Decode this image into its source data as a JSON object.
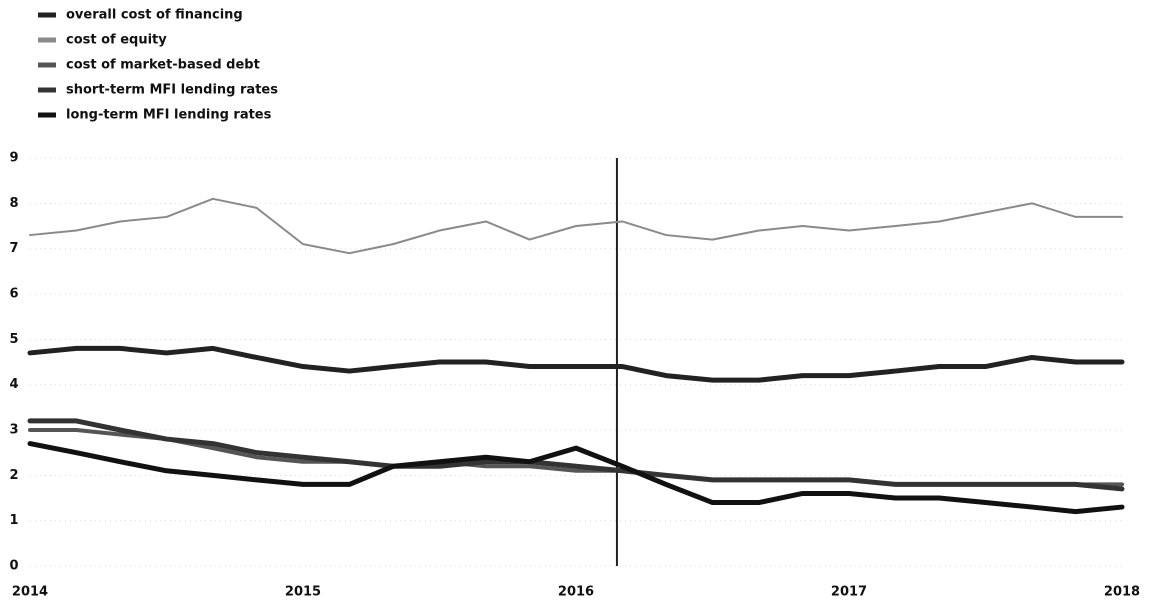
{
  "chart_data": {
    "type": "line",
    "x": [
      2014,
      2014.17,
      2014.33,
      2014.5,
      2014.67,
      2014.83,
      2015,
      2015.17,
      2015.33,
      2015.5,
      2015.67,
      2015.83,
      2016,
      2016.17,
      2016.33,
      2016.5,
      2016.67,
      2016.83,
      2017,
      2017.17,
      2017.33,
      2017.5,
      2017.67,
      2017.83,
      2018
    ],
    "series": [
      {
        "name": "overall cost of financing",
        "color": "#222222",
        "values": [
          4.7,
          4.8,
          4.8,
          4.7,
          4.8,
          4.6,
          4.4,
          4.3,
          4.4,
          4.5,
          4.5,
          4.4,
          4.4,
          4.4,
          4.2,
          4.1,
          4.1,
          4.2,
          4.2,
          4.3,
          4.4,
          4.4,
          4.6,
          4.5,
          4.5
        ]
      },
      {
        "name": "cost of equity",
        "color": "#8a8a8a",
        "values": [
          7.3,
          7.4,
          7.6,
          7.7,
          8.1,
          7.9,
          7.1,
          6.9,
          7.1,
          7.4,
          7.6,
          7.2,
          7.5,
          7.6,
          7.3,
          7.2,
          7.4,
          7.5,
          7.4,
          7.5,
          7.6,
          7.8,
          8.0,
          7.7,
          7.7
        ]
      },
      {
        "name": "cost of market-based debt",
        "color": "#555555",
        "values": [
          3.0,
          3.0,
          2.9,
          2.8,
          2.6,
          2.4,
          2.3,
          2.3,
          2.2,
          2.3,
          2.2,
          2.2,
          2.1,
          2.1,
          2.0,
          1.9,
          1.9,
          1.9,
          1.9,
          1.8,
          1.8,
          1.8,
          1.8,
          1.8,
          1.8
        ]
      },
      {
        "name": "short-term MFI lending rates",
        "color": "#333333",
        "values": [
          3.2,
          3.2,
          3.0,
          2.8,
          2.7,
          2.5,
          2.4,
          2.3,
          2.2,
          2.2,
          2.3,
          2.3,
          2.2,
          2.1,
          2.0,
          1.9,
          1.9,
          1.9,
          1.9,
          1.8,
          1.8,
          1.8,
          1.8,
          1.8,
          1.7
        ]
      },
      {
        "name": "long-term MFI lending rates",
        "color": "#111111",
        "values": [
          2.7,
          2.5,
          2.3,
          2.1,
          2.0,
          1.9,
          1.8,
          1.8,
          2.2,
          2.3,
          2.4,
          2.3,
          2.6,
          2.2,
          1.8,
          1.4,
          1.4,
          1.6,
          1.6,
          1.5,
          1.5,
          1.4,
          1.3,
          1.2,
          1.3
        ]
      }
    ],
    "xlim": [
      2014,
      2018
    ],
    "xticks": [
      2014,
      2015,
      2016,
      2017,
      2018
    ],
    "ylim": [
      0,
      9
    ],
    "yticks": [
      0,
      1,
      2,
      3,
      4,
      5,
      6,
      7,
      8,
      9
    ],
    "vline": 2016.15,
    "grid": true,
    "legend": "top-left"
  }
}
